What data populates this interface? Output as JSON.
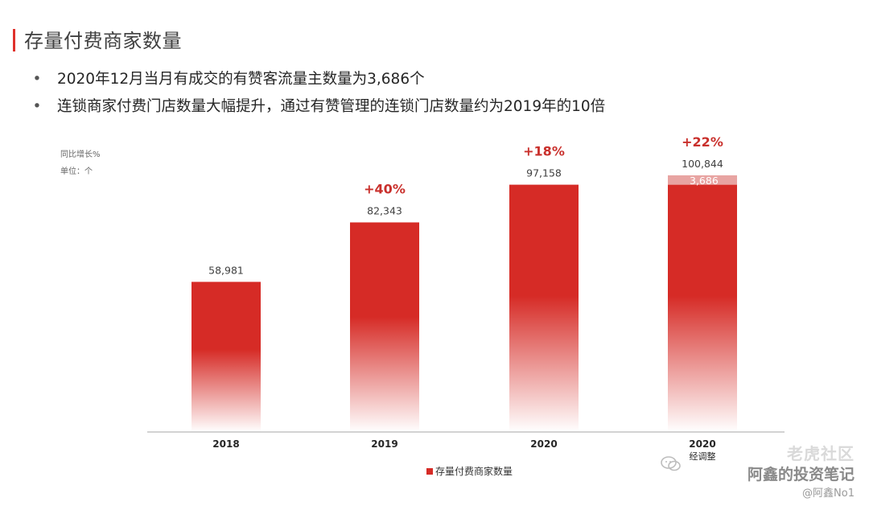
{
  "title": "存量付费商家数量",
  "bullets": [
    "2020年12月当月有成交的有赞客流量主数量为3,686个",
    "连锁商家付费门店数量大幅提升，通过有赞管理的连锁门店数量约为2019年的10倍"
  ],
  "axis_notes": {
    "growth": "同比增长%",
    "unit": "单位：个"
  },
  "watermark": {
    "line1": "老虎社区",
    "line2": "阿鑫的投资笔记",
    "line3": "@阿鑫No1",
    "icon": "wechat-icon"
  },
  "colors": {
    "accent": "#e0312b",
    "bar": "#d62b26",
    "growth": "#c9302c",
    "segment": "#e8a4a2"
  },
  "chart_data": {
    "type": "bar",
    "categories": [
      "2018",
      "2019",
      "2020",
      "2020"
    ],
    "category_sublabels": [
      "",
      "",
      "",
      "经调整"
    ],
    "series": [
      {
        "name": "存量付费商家数量",
        "values": [
          58981,
          82343,
          97158,
          97158
        ]
      }
    ],
    "extra_segment": {
      "category_index": 3,
      "value": 3686,
      "label": "3,686"
    },
    "total_labels": [
      "58,981",
      "82,343",
      "97,158",
      "100,844"
    ],
    "growth_labels": [
      "",
      "+40%",
      "+18%",
      "+22%"
    ],
    "ylim": [
      0,
      110000
    ],
    "legend_position": "bottom",
    "grid": false,
    "xlabel": "",
    "ylabel": ""
  }
}
